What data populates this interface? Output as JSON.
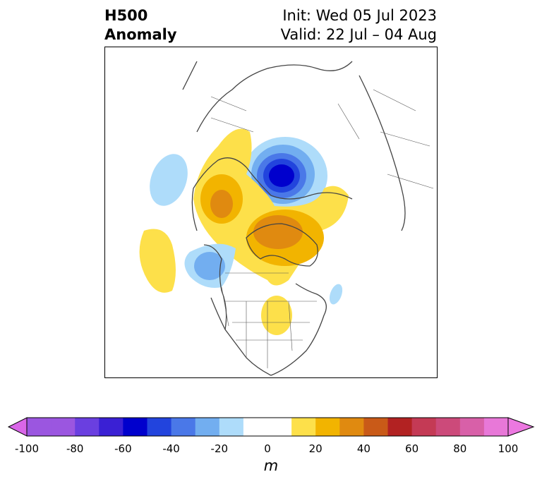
{
  "title": {
    "variable": "H500",
    "quantity": "Anomaly",
    "init": "Init: Wed 05 Jul 2023",
    "valid": "Valid: 22 Jul – 04 Aug"
  },
  "colorbar": {
    "unit": "m",
    "ticks": [
      "-100",
      "-80",
      "-60",
      "-40",
      "-20",
      "0",
      "20",
      "40",
      "60",
      "80",
      "100"
    ],
    "range": [
      -100,
      100
    ],
    "bins": [
      {
        "from": -100,
        "to": -90,
        "color": "#9b56e0"
      },
      {
        "from": -90,
        "to": -80,
        "color": "#9b56e0"
      },
      {
        "from": -80,
        "to": -70,
        "color": "#6a3fe0"
      },
      {
        "from": -70,
        "to": -60,
        "color": "#3a20d4"
      },
      {
        "from": -60,
        "to": -50,
        "color": "#0000cd"
      },
      {
        "from": -50,
        "to": -40,
        "color": "#2244dd"
      },
      {
        "from": -40,
        "to": -30,
        "color": "#4a78e8"
      },
      {
        "from": -30,
        "to": -20,
        "color": "#72aef0"
      },
      {
        "from": -20,
        "to": -10,
        "color": "#aedcfa"
      },
      {
        "from": -10,
        "to": 10,
        "color": "#ffffff"
      },
      {
        "from": 10,
        "to": 20,
        "color": "#fde04a"
      },
      {
        "from": 20,
        "to": 30,
        "color": "#f2b400"
      },
      {
        "from": 30,
        "to": 40,
        "color": "#e08a10"
      },
      {
        "from": 40,
        "to": 50,
        "color": "#c95a18"
      },
      {
        "from": 50,
        "to": 60,
        "color": "#b22222"
      },
      {
        "from": 60,
        "to": 70,
        "color": "#c43a55"
      },
      {
        "from": 70,
        "to": 80,
        "color": "#cc4a7a"
      },
      {
        "from": 80,
        "to": 90,
        "color": "#d860a8"
      },
      {
        "from": 90,
        "to": 100,
        "color": "#e878d8"
      }
    ],
    "extend_low_color": "#d966e8",
    "extend_high_color": "#ec78e0"
  }
}
